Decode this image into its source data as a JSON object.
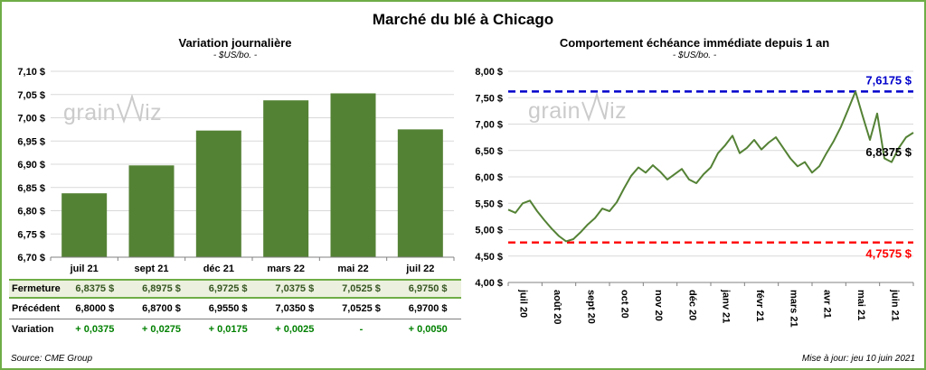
{
  "title": "Marché du blé à Chicago",
  "source": "Source: CME Group",
  "updated": "Mise à jour: jeu 10 juin 2021",
  "watermark": {
    "pre": "grain",
    "post": "iz"
  },
  "colors": {
    "green": "#548235",
    "blue": "#0000CC",
    "red": "#FF0000",
    "grid": "#D9D9D9",
    "axis": "#808080",
    "frame": "#6FAD47",
    "highlight_row_bg": "#EBF1DE",
    "variation_green": "#008000"
  },
  "chart_data": [
    {
      "type": "bar",
      "title": "Variation  journalière",
      "subtitle": "- $US/bo. -",
      "categories": [
        "juil 21",
        "sept 21",
        "déc 21",
        "mars 22",
        "mai 22",
        "juil 22"
      ],
      "values": [
        6.8375,
        6.8975,
        6.9725,
        7.0375,
        7.0525,
        6.975
      ],
      "ylim": [
        6.7,
        7.1
      ],
      "ytick_labels": [
        "6,70 $",
        "6,75 $",
        "6,80 $",
        "6,85 $",
        "6,90 $",
        "6,95 $",
        "7,00 $",
        "7,05 $",
        "7,10 $"
      ],
      "grid": true,
      "bar_color": "#548235"
    },
    {
      "type": "line",
      "title": "Comportement  échéance  immédiate  depuis 1 an",
      "subtitle": "- $US/bo. -",
      "x_labels": [
        "juil 20",
        "août 20",
        "sept 20",
        "oct 20",
        "nov 20",
        "déc 20",
        "janv 21",
        "févr 21",
        "mars 21",
        "avr 21",
        "mai 21",
        "juin 21"
      ],
      "values": [
        5.38,
        5.32,
        5.5,
        5.55,
        5.35,
        5.18,
        5.02,
        4.88,
        4.78,
        4.82,
        4.95,
        5.1,
        5.22,
        5.4,
        5.35,
        5.52,
        5.78,
        6.02,
        6.18,
        6.08,
        6.22,
        6.1,
        5.95,
        6.05,
        6.15,
        5.95,
        5.88,
        6.05,
        6.18,
        6.45,
        6.6,
        6.78,
        6.45,
        6.55,
        6.7,
        6.52,
        6.65,
        6.75,
        6.55,
        6.35,
        6.2,
        6.28,
        6.08,
        6.2,
        6.45,
        6.68,
        6.95,
        7.28,
        7.6175,
        7.15,
        6.7,
        7.2,
        6.35,
        6.28,
        6.55,
        6.75,
        6.8375
      ],
      "ylim": [
        4.0,
        8.0
      ],
      "ytick_labels": [
        "4,00 $",
        "4,50 $",
        "5,00 $",
        "5,50 $",
        "6,00 $",
        "6,50 $",
        "7,00 $",
        "7,50 $",
        "8,00 $"
      ],
      "grid": true,
      "line_color": "#548235",
      "high_line": {
        "value": 7.6175,
        "label": "7,6175 $"
      },
      "low_line": {
        "value": 4.7575,
        "label": "4,7575 $"
      },
      "last_value": 6.8375,
      "last_label": "6,8375 $"
    }
  ],
  "table": {
    "rows": [
      {
        "key": "fermeture",
        "label": "Fermeture",
        "values": [
          "6,8375  $",
          "6,8975  $",
          "6,9725  $",
          "7,0375  $",
          "7,0525  $",
          "6,9750  $"
        ]
      },
      {
        "key": "precedent",
        "label": "Précédent",
        "values": [
          "6,8000  $",
          "6,8700  $",
          "6,9550  $",
          "7,0350  $",
          "7,0525  $",
          "6,9700  $"
        ]
      },
      {
        "key": "variation",
        "label": "Variation",
        "values": [
          "+ 0,0375",
          "+ 0,0275",
          "+ 0,0175",
          "+ 0,0025",
          "-",
          "+ 0,0050"
        ]
      }
    ]
  }
}
